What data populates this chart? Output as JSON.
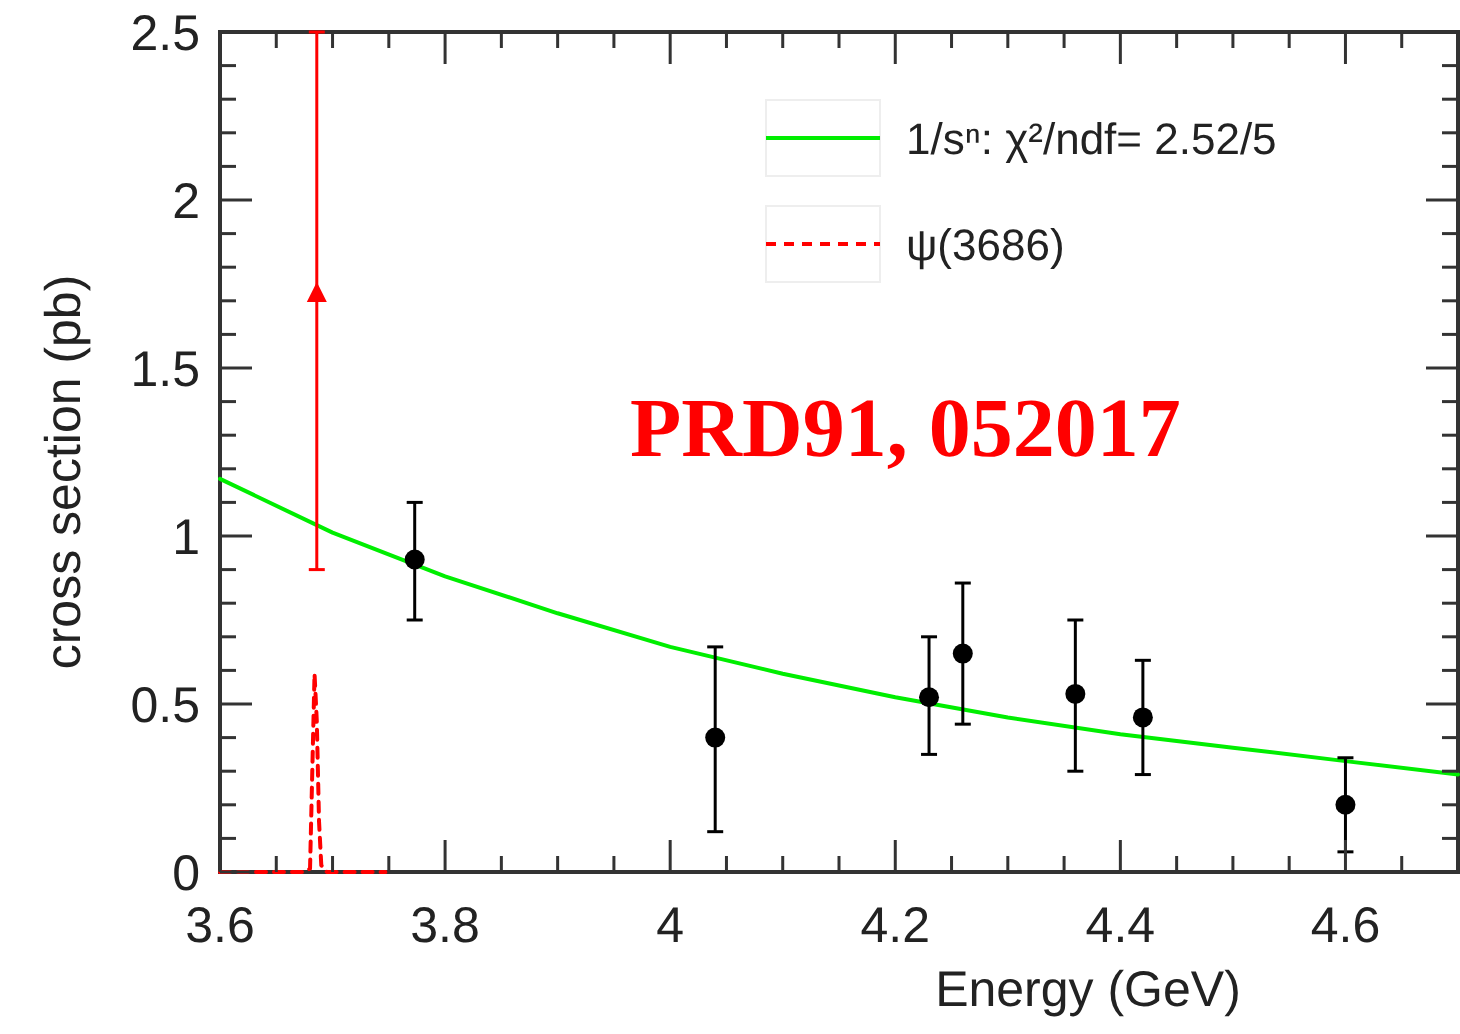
{
  "chart_data": {
    "type": "scatter",
    "xlabel": "Energy (GeV)",
    "ylabel": "cross section (pb)",
    "xlim": [
      3.6,
      4.7
    ],
    "ylim": [
      0,
      2.5
    ],
    "xticks": [
      3.6,
      {
        "value": 3.65,
        "label": null
      },
      {
        "value": 3.7,
        "label": null
      },
      {
        "value": 3.75,
        "label": null
      },
      3.8,
      {
        "value": 3.85,
        "label": null
      },
      {
        "value": 3.9,
        "label": null
      },
      {
        "value": 3.95,
        "label": null
      },
      4,
      {
        "value": 4.05,
        "label": null
      },
      {
        "value": 4.1,
        "label": null
      },
      {
        "value": 4.15,
        "label": null
      },
      4.2,
      {
        "value": 4.25,
        "label": null
      },
      {
        "value": 4.3,
        "label": null
      },
      {
        "value": 4.35,
        "label": null
      },
      4.4,
      {
        "value": 4.45,
        "label": null
      },
      {
        "value": 4.5,
        "label": null
      },
      {
        "value": 4.55,
        "label": null
      },
      4.6,
      {
        "value": 4.65,
        "label": null
      }
    ],
    "yticks": [
      0,
      {
        "value": 0.1,
        "label": null
      },
      {
        "value": 0.2,
        "label": null
      },
      {
        "value": 0.3,
        "label": null
      },
      {
        "value": 0.4,
        "label": null
      },
      0.5,
      {
        "value": 0.6,
        "label": null
      },
      {
        "value": 0.7,
        "label": null
      },
      {
        "value": 0.8,
        "label": null
      },
      {
        "value": 0.9,
        "label": null
      },
      1,
      {
        "value": 1.1,
        "label": null
      },
      {
        "value": 1.2,
        "label": null
      },
      {
        "value": 1.3,
        "label": null
      },
      {
        "value": 1.4,
        "label": null
      },
      1.5,
      {
        "value": 1.6,
        "label": null
      },
      {
        "value": 1.7,
        "label": null
      },
      {
        "value": 1.8,
        "label": null
      },
      {
        "value": 1.9,
        "label": null
      },
      2,
      {
        "value": 2.1,
        "label": null
      },
      {
        "value": 2.2,
        "label": null
      },
      {
        "value": 2.3,
        "label": null
      },
      {
        "value": 2.4,
        "label": null
      },
      2.5
    ],
    "legend": "top right",
    "grid": false,
    "annotations": [
      "PRD91, 052017"
    ],
    "series": [
      {
        "type": "line",
        "name": "1/sⁿ: χ²/ndf= 2.52/5",
        "color": "#00ee00",
        "line_style": "solid",
        "marker": "none",
        "x": [
          3.6,
          3.7,
          3.8,
          3.9,
          4.0,
          4.1,
          4.2,
          4.3,
          4.4,
          4.5,
          4.6,
          4.7
        ],
        "values": [
          1.17,
          1.01,
          0.88,
          0.77,
          0.67,
          0.59,
          0.52,
          0.46,
          0.41,
          0.37,
          0.33,
          0.29
        ]
      },
      {
        "type": "line",
        "name": "ψ(3686)",
        "color": "#ff0000",
        "line_style": "dashed",
        "marker": "none",
        "x": [
          3.6,
          3.675,
          3.68,
          3.684,
          3.686,
          3.688,
          3.69,
          3.695,
          3.747
        ],
        "values": [
          0,
          0,
          0.01,
          0.59,
          0.45,
          0.15,
          0.02,
          0,
          0
        ]
      },
      {
        "color": "#ff0000",
        "marker": "triangle",
        "x": [
          3.686
        ],
        "values": [
          1.72
        ],
        "errors": [
          [
            0.9,
            2.5
          ]
        ]
      },
      {
        "color": "#000000",
        "marker": "circle",
        "x": [
          3.773,
          4.04,
          4.23,
          4.26,
          4.36,
          4.42,
          4.6
        ],
        "values": [
          0.93,
          0.4,
          0.52,
          0.65,
          0.53,
          0.46,
          0.2
        ],
        "errors": [
          [
            0.75,
            1.1
          ],
          [
            0.12,
            0.67
          ],
          [
            0.35,
            0.7
          ],
          [
            0.44,
            0.86
          ],
          [
            0.3,
            0.75
          ],
          [
            0.29,
            0.63
          ],
          [
            0.06,
            0.34
          ]
        ]
      }
    ]
  }
}
